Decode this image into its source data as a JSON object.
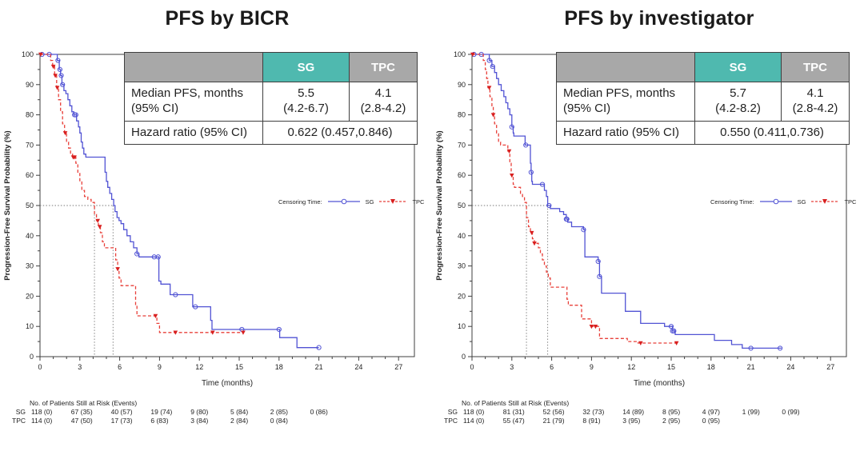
{
  "colors": {
    "sg_blue": "#5153d4",
    "tpc_red": "#e8403a",
    "tpc_marker_red": "#d81f1f",
    "teal_header": "#4fb9af",
    "gray_header": "#a8a8a8",
    "axis": "#3f3f3f",
    "ref_line": "#7a7a7a"
  },
  "legend": {
    "prefix": "Censoring Time:",
    "sg_label": "SG",
    "tpc_label": "TPC"
  },
  "axes": {
    "xlabel": "Time (months)",
    "ylabel": "Progression-Free Survival Probability (%)",
    "x_ticks": [
      0,
      3,
      6,
      9,
      12,
      15,
      18,
      21,
      24,
      27
    ],
    "y_ticks": [
      0,
      10,
      20,
      30,
      40,
      50,
      60,
      70,
      80,
      90,
      100
    ],
    "x_range": [
      0,
      27
    ],
    "y_range": [
      0,
      100
    ],
    "reference_level_pct": 50,
    "grid": "off"
  },
  "risk_header": "No. of Patients Still at Risk (Events)",
  "chart_data": [
    {
      "type": "line",
      "title": "PFS by BICR",
      "stats": {
        "group_sg": "SG",
        "group_tpc": "TPC",
        "median_label_1": "Median PFS, months",
        "median_label_2": "(95% CI)",
        "sg_median": "5.5",
        "sg_ci": "(4.2-6.7)",
        "tpc_median": "4.1",
        "tpc_ci": "(2.8-4.2)",
        "hr_label": "Hazard ratio (95% CI)",
        "hr_value": "0.622 (0.457,0.846)"
      },
      "medians": {
        "sg": 5.5,
        "tpc": 4.1
      },
      "series": [
        {
          "name": "SG",
          "steps": [
            [
              0,
              100
            ],
            [
              1.3,
              98
            ],
            [
              1.45,
              95
            ],
            [
              1.55,
              93
            ],
            [
              1.65,
              90
            ],
            [
              1.8,
              88
            ],
            [
              1.95,
              87
            ],
            [
              2.1,
              85
            ],
            [
              2.25,
              83
            ],
            [
              2.4,
              81
            ],
            [
              2.55,
              80
            ],
            [
              2.75,
              78
            ],
            [
              2.9,
              76
            ],
            [
              3.0,
              74
            ],
            [
              3.1,
              71
            ],
            [
              3.2,
              69
            ],
            [
              3.3,
              67
            ],
            [
              3.45,
              66
            ],
            [
              4.85,
              66
            ],
            [
              4.9,
              61
            ],
            [
              5.0,
              58
            ],
            [
              5.1,
              56
            ],
            [
              5.25,
              54
            ],
            [
              5.4,
              52
            ],
            [
              5.55,
              50
            ],
            [
              5.65,
              48
            ],
            [
              5.8,
              46
            ],
            [
              5.95,
              45
            ],
            [
              6.1,
              44
            ],
            [
              6.3,
              42
            ],
            [
              6.55,
              40
            ],
            [
              6.8,
              38
            ],
            [
              7.05,
              36
            ],
            [
              7.3,
              34
            ],
            [
              7.45,
              33
            ],
            [
              8.85,
              33
            ],
            [
              8.95,
              25
            ],
            [
              9.1,
              24
            ],
            [
              9.7,
              24
            ],
            [
              9.8,
              20.5
            ],
            [
              11.4,
              20.5
            ],
            [
              11.5,
              16.5
            ],
            [
              12.75,
              16.5
            ],
            [
              12.85,
              12
            ],
            [
              12.95,
              9
            ],
            [
              17.95,
              9
            ],
            [
              18.05,
              6.3
            ],
            [
              19.25,
              6.3
            ],
            [
              19.35,
              3
            ],
            [
              21,
              3
            ]
          ],
          "censor_times": [
            0.15,
            0.7,
            1.35,
            1.5,
            1.6,
            1.7,
            2.6,
            2.7,
            7.3,
            8.6,
            8.9,
            10.2,
            11.7,
            15.2,
            18.0,
            21.0
          ]
        },
        {
          "name": "TPC",
          "steps": [
            [
              0,
              100
            ],
            [
              0.8,
              98
            ],
            [
              0.95,
              96
            ],
            [
              1.1,
              93
            ],
            [
              1.25,
              89
            ],
            [
              1.4,
              85
            ],
            [
              1.55,
              81
            ],
            [
              1.7,
              77
            ],
            [
              1.85,
              74
            ],
            [
              2.0,
              71
            ],
            [
              2.15,
              69
            ],
            [
              2.3,
              67
            ],
            [
              2.45,
              66
            ],
            [
              2.7,
              64
            ],
            [
              2.85,
              61
            ],
            [
              3.0,
              58
            ],
            [
              3.15,
              55
            ],
            [
              3.35,
              53
            ],
            [
              3.6,
              52
            ],
            [
              3.85,
              51
            ],
            [
              4.1,
              47
            ],
            [
              4.25,
              45
            ],
            [
              4.4,
              43
            ],
            [
              4.55,
              41
            ],
            [
              4.7,
              38
            ],
            [
              4.85,
              36
            ],
            [
              5.6,
              36
            ],
            [
              5.7,
              32
            ],
            [
              5.85,
              29
            ],
            [
              5.95,
              26
            ],
            [
              6.1,
              23.5
            ],
            [
              7.1,
              23.5
            ],
            [
              7.2,
              17
            ],
            [
              7.3,
              13.5
            ],
            [
              8.7,
              13.5
            ],
            [
              8.8,
              11
            ],
            [
              9.0,
              8
            ],
            [
              15.3,
              8
            ]
          ],
          "censor_times": [
            0.05,
            1.0,
            1.15,
            1.3,
            1.9,
            2.5,
            2.6,
            4.35,
            4.5,
            5.85,
            8.7,
            10.2,
            13.0,
            15.3
          ]
        }
      ],
      "risk_rows": [
        {
          "name": "SG",
          "values": [
            "118 (0)",
            "67 (35)",
            "40 (57)",
            "19 (74)",
            "9 (80)",
            "5 (84)",
            "2 (85)",
            "0 (86)"
          ]
        },
        {
          "name": "TPC",
          "values": [
            "114 (0)",
            "47 (50)",
            "17 (73)",
            "6 (83)",
            "3 (84)",
            "2 (84)",
            "0 (84)"
          ]
        }
      ]
    },
    {
      "type": "line",
      "title": "PFS by investigator",
      "stats": {
        "group_sg": "SG",
        "group_tpc": "TPC",
        "median_label_1": "Median PFS, months",
        "median_label_2": "(95% CI)",
        "sg_median": "5.7",
        "sg_ci": "(4.2-8.2)",
        "tpc_median": "4.1",
        "tpc_ci": "(2.8-4.2)",
        "hr_label": "Hazard ratio (95% CI)",
        "hr_value": "0.550 (0.411,0.736)"
      },
      "medians": {
        "sg": 5.7,
        "tpc": 4.1
      },
      "series": [
        {
          "name": "SG",
          "steps": [
            [
              0,
              100
            ],
            [
              1.3,
              98
            ],
            [
              1.5,
              96
            ],
            [
              1.7,
              94
            ],
            [
              1.85,
              92
            ],
            [
              2.0,
              90
            ],
            [
              2.2,
              88
            ],
            [
              2.4,
              86
            ],
            [
              2.55,
              84
            ],
            [
              2.7,
              82
            ],
            [
              2.85,
              80
            ],
            [
              3.0,
              76
            ],
            [
              3.1,
              74
            ],
            [
              3.15,
              73
            ],
            [
              3.9,
              73
            ],
            [
              4.0,
              70
            ],
            [
              4.35,
              70
            ],
            [
              4.4,
              64
            ],
            [
              4.45,
              61
            ],
            [
              4.5,
              58
            ],
            [
              4.55,
              57
            ],
            [
              5.3,
              57
            ],
            [
              5.45,
              55
            ],
            [
              5.6,
              53
            ],
            [
              5.7,
              50
            ],
            [
              5.9,
              49
            ],
            [
              6.6,
              48
            ],
            [
              6.9,
              47
            ],
            [
              7.1,
              45.5
            ],
            [
              7.2,
              44.5
            ],
            [
              7.5,
              43
            ],
            [
              8.4,
              42
            ],
            [
              8.5,
              33
            ],
            [
              9.4,
              33
            ],
            [
              9.5,
              31.5
            ],
            [
              9.6,
              26.5
            ],
            [
              9.75,
              21
            ],
            [
              11.45,
              21
            ],
            [
              11.55,
              15
            ],
            [
              12.65,
              15
            ],
            [
              12.7,
              11
            ],
            [
              14.4,
              11
            ],
            [
              14.5,
              10
            ],
            [
              15.1,
              8.5
            ],
            [
              15.3,
              7.3
            ],
            [
              18.15,
              7.3
            ],
            [
              18.25,
              5.4
            ],
            [
              19.45,
              5.4
            ],
            [
              19.55,
              4
            ],
            [
              20.25,
              4
            ],
            [
              20.35,
              2.8
            ],
            [
              23.3,
              2.8
            ]
          ],
          "censor_times": [
            0.15,
            0.7,
            1.3,
            1.55,
            3.0,
            4.05,
            4.45,
            5.3,
            5.8,
            7.1,
            7.15,
            8.4,
            9.5,
            9.6,
            15.0,
            15.1,
            15.2,
            21.0,
            23.2
          ]
        },
        {
          "name": "TPC",
          "steps": [
            [
              0,
              100
            ],
            [
              0.85,
              98
            ],
            [
              1.0,
              95
            ],
            [
              1.1,
              92
            ],
            [
              1.2,
              89
            ],
            [
              1.35,
              86
            ],
            [
              1.5,
              83
            ],
            [
              1.6,
              80
            ],
            [
              1.7,
              77
            ],
            [
              1.85,
              74
            ],
            [
              2.0,
              71
            ],
            [
              2.15,
              70
            ],
            [
              2.6,
              70
            ],
            [
              2.7,
              68
            ],
            [
              2.85,
              64
            ],
            [
              2.95,
              60
            ],
            [
              3.1,
              57
            ],
            [
              3.2,
              56
            ],
            [
              3.5,
              56
            ],
            [
              3.65,
              54
            ],
            [
              3.8,
              53
            ],
            [
              3.95,
              51
            ],
            [
              4.1,
              46
            ],
            [
              4.25,
              43
            ],
            [
              4.4,
              41
            ],
            [
              4.55,
              39
            ],
            [
              4.7,
              37.5
            ],
            [
              5.0,
              36
            ],
            [
              5.15,
              34
            ],
            [
              5.3,
              32
            ],
            [
              5.45,
              30
            ],
            [
              5.6,
              28
            ],
            [
              5.75,
              26
            ],
            [
              5.9,
              23
            ],
            [
              7.05,
              23
            ],
            [
              7.15,
              19
            ],
            [
              7.25,
              17
            ],
            [
              8.15,
              17
            ],
            [
              8.25,
              12.5
            ],
            [
              8.9,
              12.5
            ],
            [
              9.0,
              10
            ],
            [
              9.5,
              10
            ],
            [
              9.6,
              6
            ],
            [
              11.5,
              6
            ],
            [
              11.7,
              5
            ],
            [
              12.5,
              4.5
            ],
            [
              15.4,
              4.5
            ]
          ],
          "censor_times": [
            0.05,
            1.3,
            1.6,
            2.8,
            3.0,
            4.5,
            4.7,
            9.0,
            9.3,
            12.7,
            15.4
          ]
        }
      ],
      "risk_rows": [
        {
          "name": "SG",
          "values": [
            "118 (0)",
            "81 (31)",
            "52 (56)",
            "32 (73)",
            "14 (89)",
            "8 (95)",
            "4 (97)",
            "1 (99)",
            "0 (99)"
          ]
        },
        {
          "name": "TPC",
          "values": [
            "114 (0)",
            "55 (47)",
            "21 (79)",
            "8 (91)",
            "3 (95)",
            "2 (95)",
            "0 (95)"
          ]
        }
      ]
    }
  ]
}
